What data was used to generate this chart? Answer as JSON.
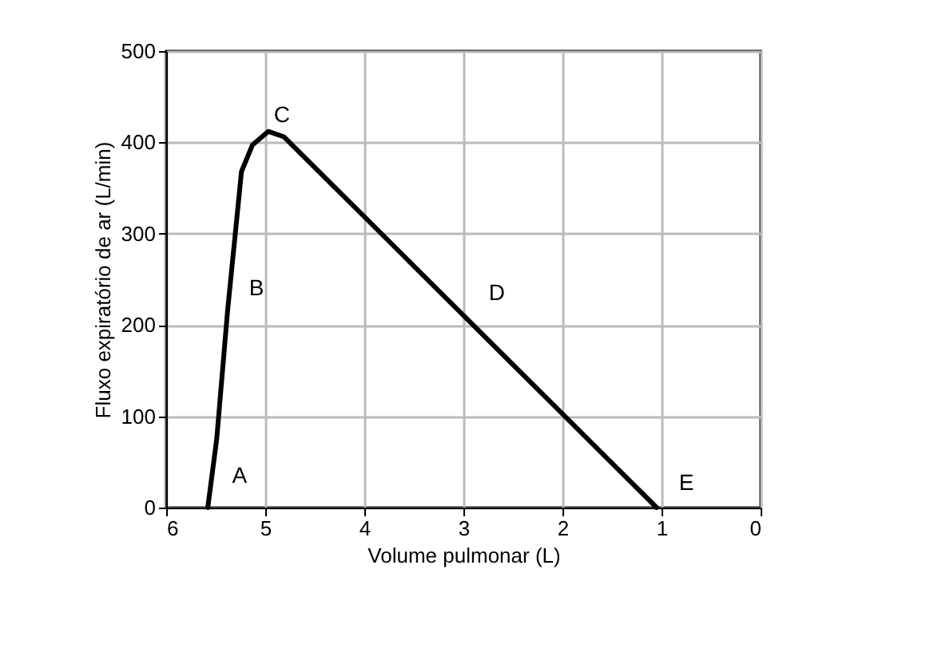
{
  "chart_data": {
    "type": "line",
    "xlabel": "Volume pulmonar (L)",
    "ylabel": "Fluxo expiratório de ar (L/min)",
    "series": [
      {
        "color": "#000000",
        "x": [
          5.58,
          5.49,
          5.38,
          5.24,
          5.13,
          4.97,
          4.81,
          1.05
        ],
        "values": [
          0,
          75,
          216,
          368,
          397,
          412,
          406,
          0
        ]
      }
    ],
    "xlim": [
      6,
      0
    ],
    "xticks": [
      6,
      5,
      4,
      3,
      2,
      1,
      0
    ],
    "ylim": [
      0,
      500
    ],
    "yticks": [
      0,
      100,
      200,
      300,
      400,
      500
    ],
    "grid": true,
    "marker": "none",
    "line_style": "solid",
    "annotations": [
      {
        "text": "A",
        "x": 5.56,
        "y": 10
      },
      {
        "text": "B",
        "x": 5.39,
        "y": 215
      },
      {
        "text": "C",
        "x": 5.14,
        "y": 405
      },
      {
        "text": "D",
        "x": 2.97,
        "y": 210
      },
      {
        "text": "E",
        "x": 1.05,
        "y": 2
      }
    ]
  }
}
